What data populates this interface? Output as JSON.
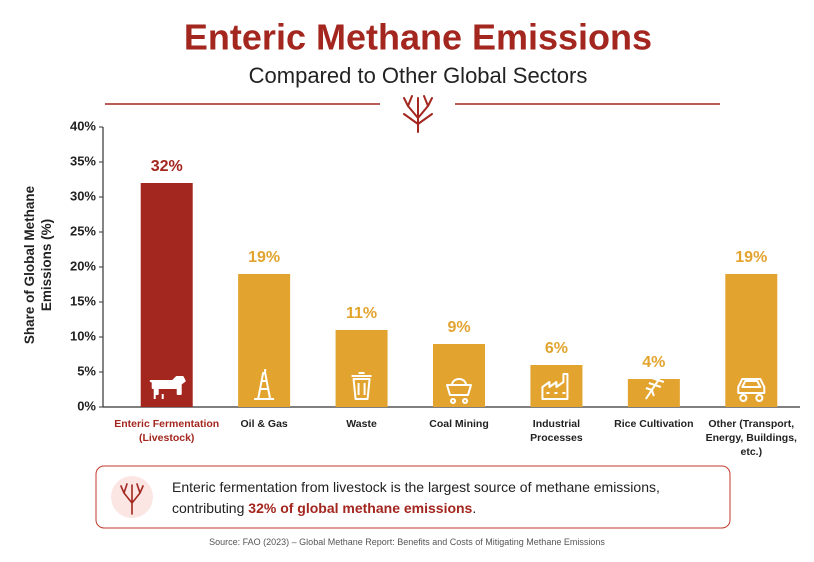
{
  "chart_data": {
    "type": "bar",
    "title": "Enteric Methane Emissions",
    "subtitle": "Compared to Other Global Sectors",
    "y_label": "Share of Global Methane Emissions (%)",
    "categories": [
      "Enteric Fermentation (Livestock)",
      "Oil & Gas",
      "Waste",
      "Coal Mining",
      "Industrial Processes",
      "Rice Cultivation",
      "Other (Transport, Energy, Buildings, etc.)"
    ],
    "values": [
      32,
      19,
      11,
      9,
      6,
      4,
      19
    ],
    "value_labels": [
      "32%",
      "19%",
      "11%",
      "9%",
      "6%",
      "4%",
      "19%"
    ],
    "colors": [
      "#a3261f",
      "#e2a42f",
      "#e2a42f",
      "#e2a42f",
      "#e2a42f",
      "#e2a42f",
      "#e2a42f"
    ],
    "ylim": [
      0,
      40
    ],
    "yticks": [
      {
        "value": 0,
        "label": "0%"
      },
      {
        "value": 5,
        "label": "5%"
      },
      {
        "value": 10,
        "label": "10%"
      },
      {
        "value": 15,
        "label": "15%"
      },
      {
        "value": 20,
        "label": "20%"
      },
      {
        "value": 25,
        "label": "25%"
      },
      {
        "value": 30,
        "label": "30%"
      },
      {
        "value": 35,
        "label": "35%"
      },
      {
        "value": 40,
        "label": "40%"
      }
    ],
    "grid": false,
    "callout": {
      "text": "Enteric fermentation from livestock is the largest source of methane emissions, contributing ",
      "highlight": "32% of global methane emissions",
      "tail": "."
    },
    "source": "Source: FAO (2023) – Global Methane Report: Benefits and Costs of Mitigating Methane Emissions"
  }
}
